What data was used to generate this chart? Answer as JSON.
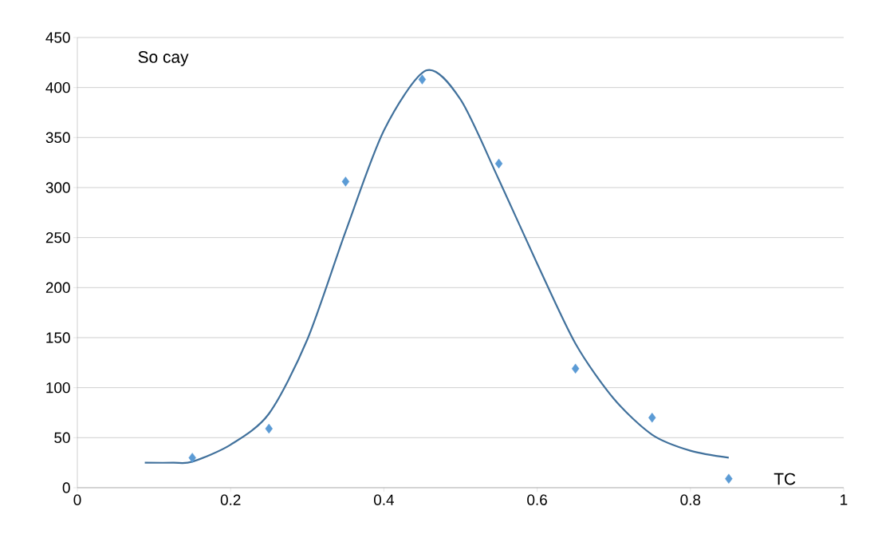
{
  "chart_data": {
    "type": "scatter",
    "xlabel": "TC",
    "ylabel": "So cay",
    "series": [
      {
        "color": "#5b9bd5",
        "marker": "diamond",
        "x": [
          0.15,
          0.25,
          0.35,
          0.45,
          0.55,
          0.65,
          0.75,
          0.85
        ],
        "values": [
          30,
          59,
          306,
          408,
          324,
          119,
          70,
          9
        ]
      },
      {
        "type": "line",
        "color": "#41719c",
        "marker": "none",
        "line_style": "solid",
        "x": [
          0.088,
          0.125,
          0.15,
          0.2,
          0.25,
          0.3,
          0.35,
          0.4,
          0.455,
          0.5,
          0.55,
          0.6,
          0.65,
          0.7,
          0.75,
          0.8,
          0.85
        ],
        "values": [
          25,
          25,
          26,
          43,
          74,
          148,
          256,
          357,
          417,
          388,
          308,
          224,
          144,
          89,
          53,
          37,
          30
        ]
      }
    ],
    "xlim": [
      0,
      1
    ],
    "xticks": [
      0,
      0.2,
      0.4,
      0.6,
      0.8,
      1
    ],
    "ylim": [
      0,
      450
    ],
    "yticks": [
      0,
      50,
      100,
      150,
      200,
      250,
      300,
      350,
      400,
      450
    ],
    "grid": "y"
  }
}
